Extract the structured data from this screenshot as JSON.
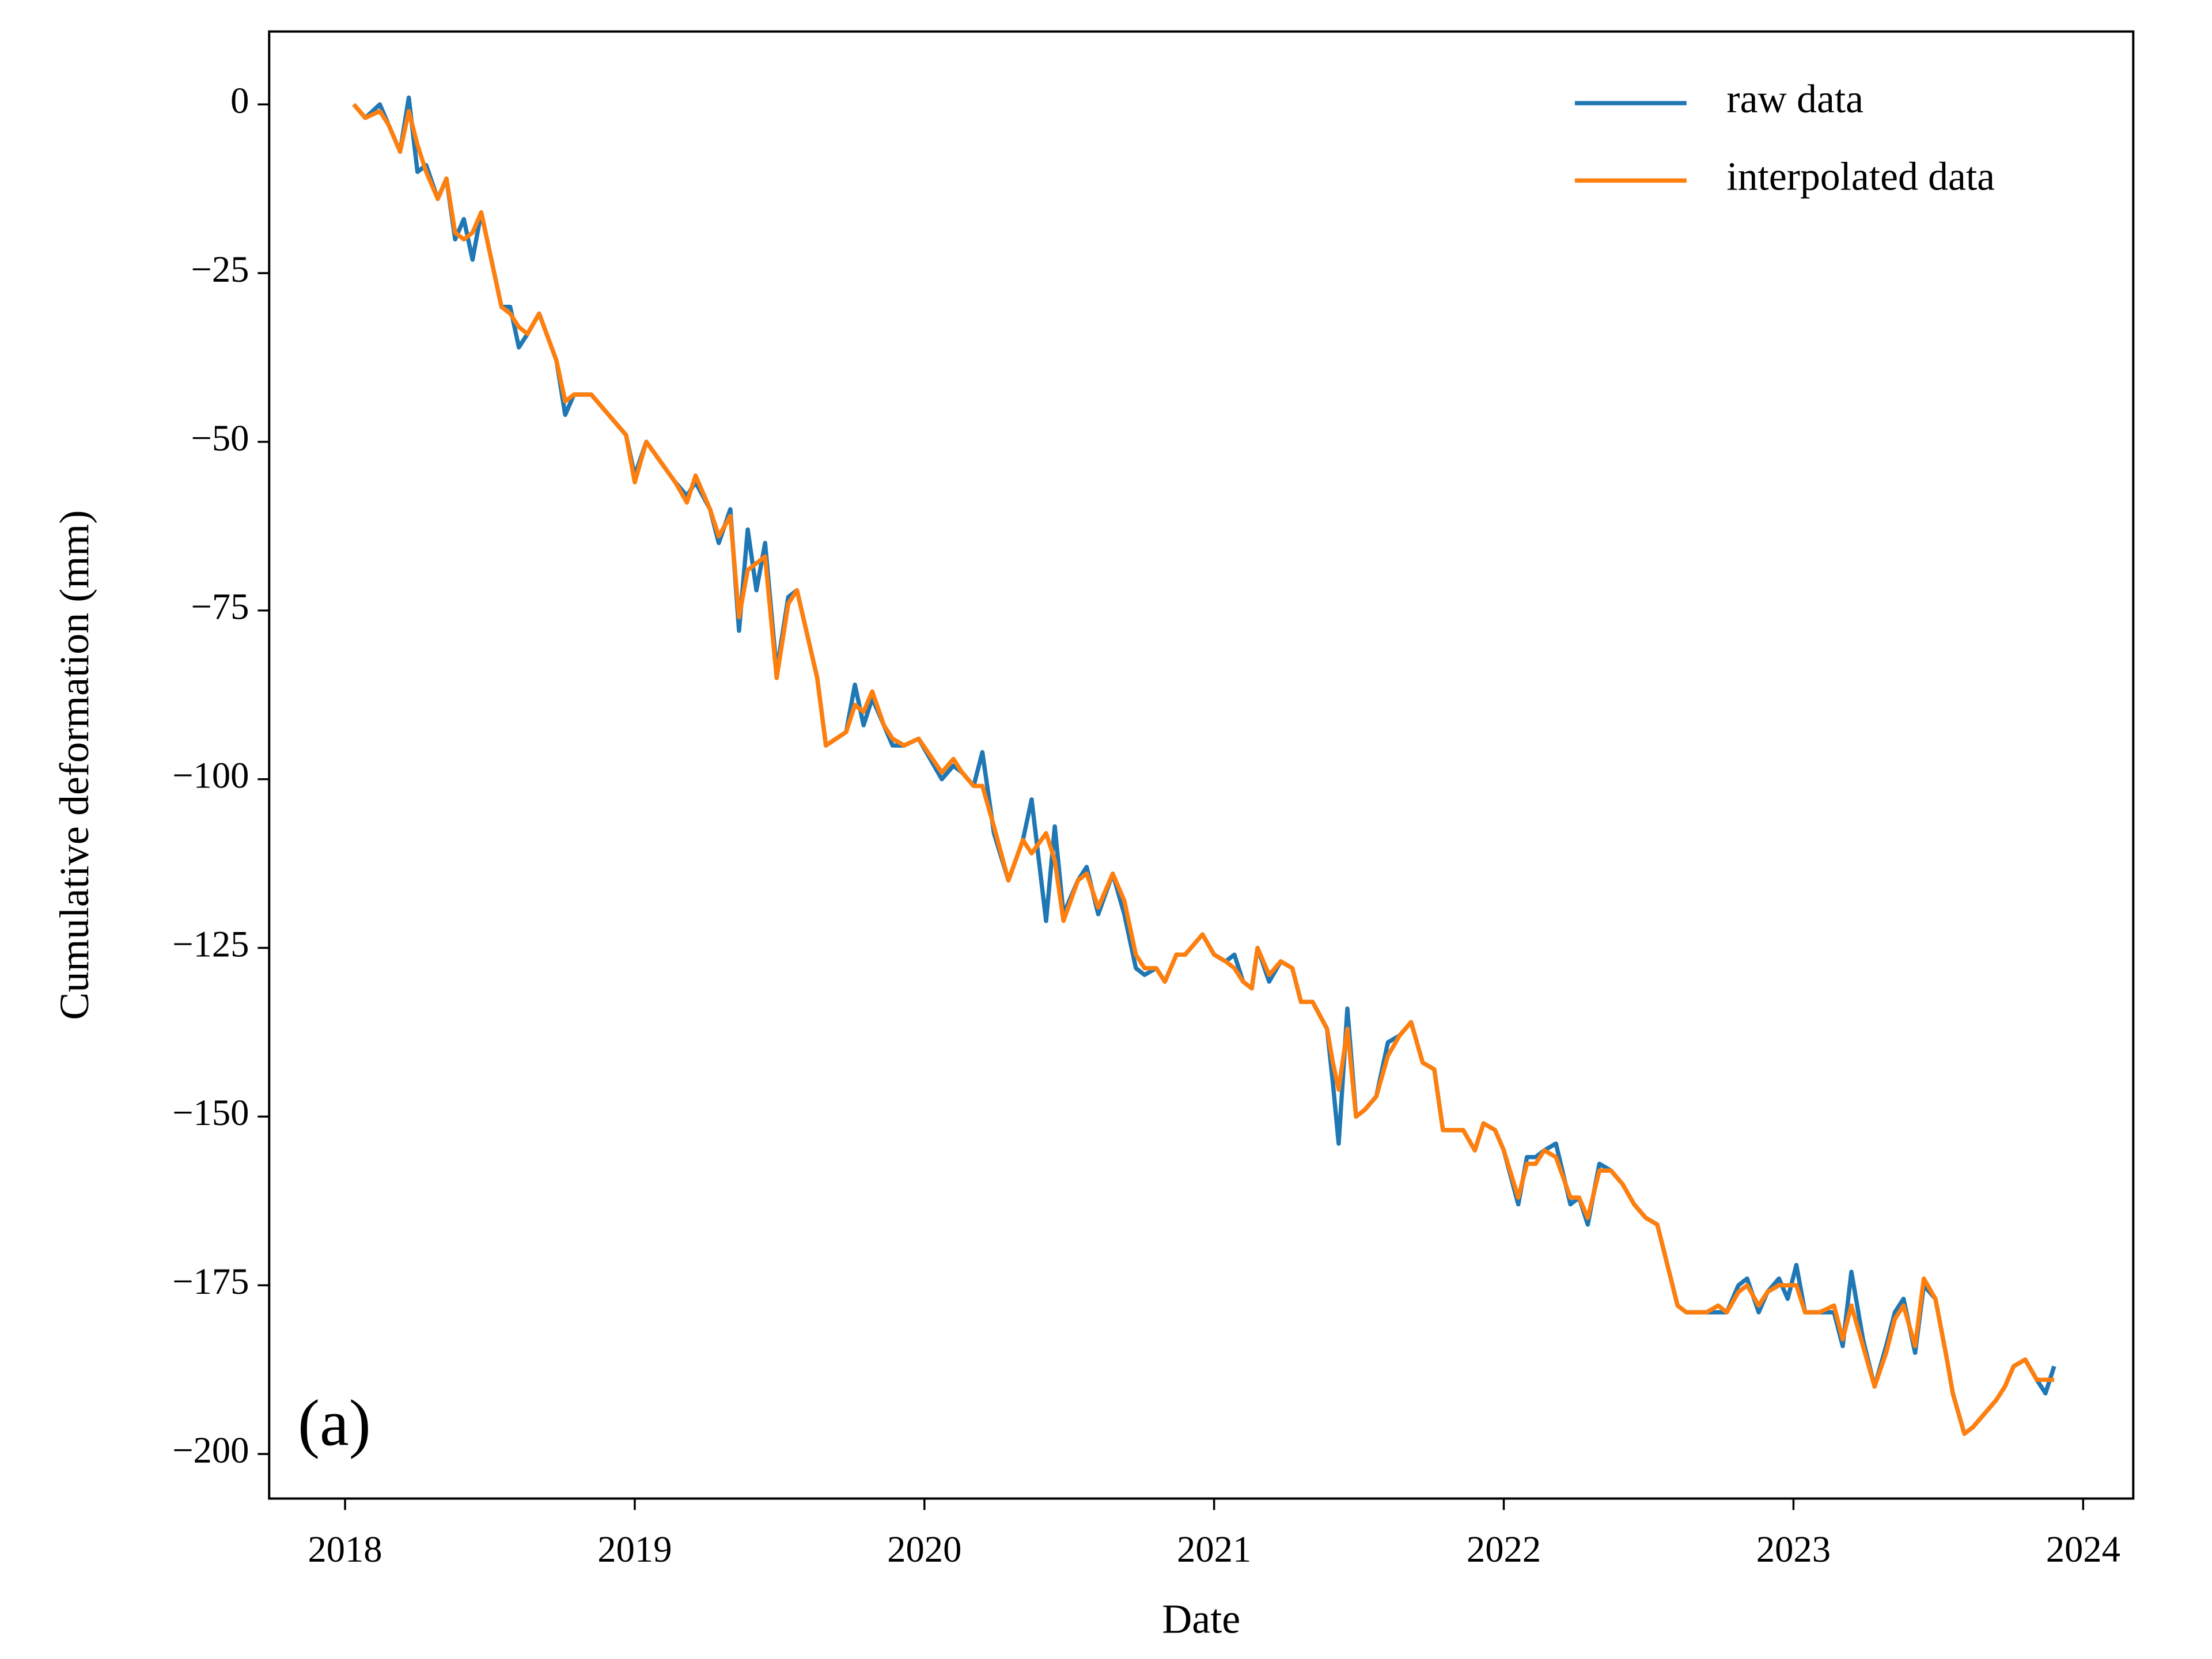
{
  "chart_data": {
    "type": "line",
    "xlabel": "Date",
    "ylabel": "Cumulative deformation (mm)",
    "annotation": "(a)",
    "x": [
      2018.03,
      2018.07,
      2018.12,
      2018.15,
      2018.19,
      2018.22,
      2018.25,
      2018.28,
      2018.32,
      2018.35,
      2018.38,
      2018.41,
      2018.44,
      2018.47,
      2018.51,
      2018.54,
      2018.57,
      2018.6,
      2018.63,
      2018.67,
      2018.73,
      2018.76,
      2018.79,
      2018.85,
      2018.89,
      2018.97,
      2019.0,
      2019.04,
      2019.14,
      2019.18,
      2019.21,
      2019.26,
      2019.29,
      2019.33,
      2019.36,
      2019.39,
      2019.42,
      2019.45,
      2019.49,
      2019.53,
      2019.56,
      2019.63,
      2019.66,
      2019.73,
      2019.76,
      2019.79,
      2019.82,
      2019.86,
      2019.89,
      2019.93,
      2019.98,
      2020.06,
      2020.1,
      2020.13,
      2020.17,
      2020.2,
      2020.24,
      2020.29,
      2020.34,
      2020.37,
      2020.42,
      2020.45,
      2020.48,
      2020.53,
      2020.56,
      2020.6,
      2020.65,
      2020.69,
      2020.73,
      2020.76,
      2020.8,
      2020.83,
      2020.87,
      2020.9,
      2020.96,
      2021.0,
      2021.04,
      2021.07,
      2021.1,
      2021.13,
      2021.15,
      2021.19,
      2021.23,
      2021.27,
      2021.3,
      2021.34,
      2021.39,
      2021.41,
      2021.43,
      2021.46,
      2021.49,
      2021.52,
      2021.56,
      2021.6,
      2021.64,
      2021.68,
      2021.72,
      2021.76,
      2021.79,
      2021.83,
      2021.86,
      2021.9,
      2021.93,
      2021.97,
      2022.0,
      2022.05,
      2022.08,
      2022.11,
      2022.14,
      2022.18,
      2022.23,
      2022.26,
      2022.29,
      2022.33,
      2022.37,
      2022.41,
      2022.45,
      2022.49,
      2022.53,
      2022.6,
      2022.63,
      2022.7,
      2022.74,
      2022.77,
      2022.81,
      2022.84,
      2022.88,
      2022.91,
      2022.95,
      2022.98,
      2023.01,
      2023.04,
      2023.09,
      2023.14,
      2023.17,
      2023.2,
      2023.24,
      2023.28,
      2023.32,
      2023.35,
      2023.38,
      2023.42,
      2023.45,
      2023.49,
      2023.53,
      2023.55,
      2023.59,
      2023.62,
      2023.7,
      2023.73,
      2023.76,
      2023.8,
      2023.84,
      2023.87,
      2023.9
    ],
    "series": [
      {
        "name": "raw data",
        "color": "#1f77b4",
        "values": [
          0,
          -2,
          0,
          -3,
          -7,
          1,
          -10,
          -9,
          -14,
          -11,
          -20,
          -17,
          -23,
          -16,
          -24,
          -30,
          -30,
          -36,
          -34,
          -31,
          -38,
          -46,
          -43,
          -43,
          -45,
          -49,
          -55,
          -50,
          -56,
          -58,
          -56,
          -60,
          -65,
          -60,
          -78,
          -63,
          -72,
          -65,
          -84,
          -73,
          -72,
          -85,
          -95,
          -93,
          -86,
          -92,
          -88,
          -92,
          -95,
          -95,
          -94,
          -100,
          -98,
          -99,
          -101,
          -96,
          -108,
          -115,
          -109,
          -103,
          -121,
          -107,
          -120,
          -115,
          -113,
          -120,
          -114,
          -120,
          -128,
          -129,
          -128,
          -130,
          -126,
          -126,
          -123,
          -126,
          -127,
          -126,
          -130,
          -131,
          -125,
          -130,
          -127,
          -128,
          -133,
          -133,
          -137,
          -145,
          -154,
          -134,
          -150,
          -149,
          -147,
          -139,
          -138,
          -136,
          -142,
          -143,
          -152,
          -152,
          -152,
          -155,
          -151,
          -152,
          -155,
          -163,
          -156,
          -156,
          -155,
          -154,
          -163,
          -162,
          -166,
          -157,
          -158,
          -160,
          -163,
          -165,
          -166,
          -178,
          -179,
          -179,
          -179,
          -179,
          -175,
          -174,
          -179,
          -176,
          -174,
          -177,
          -172,
          -179,
          -179,
          -179,
          -184,
          -173,
          -183,
          -190,
          -184,
          -179,
          -177,
          -185,
          -175,
          -177,
          -186,
          -191,
          -197,
          -196,
          -192,
          -190,
          -187,
          -186,
          -189,
          -191,
          -187
        ]
      },
      {
        "name": "interpolated data",
        "color": "#ff7f0e",
        "values": [
          0,
          -2,
          -1,
          -3,
          -7,
          -1,
          -6,
          -10,
          -14,
          -11,
          -19,
          -20,
          -19,
          -16,
          -24,
          -30,
          -31,
          -33,
          -34,
          -31,
          -38,
          -44,
          -43,
          -43,
          -45,
          -49,
          -56,
          -50,
          -56,
          -59,
          -55,
          -60,
          -64,
          -61,
          -76,
          -69,
          -68,
          -67,
          -85,
          -74,
          -72,
          -85,
          -95,
          -93,
          -89,
          -90,
          -87,
          -92,
          -94,
          -95,
          -94,
          -99,
          -97,
          -99,
          -101,
          -101,
          -107,
          -115,
          -109,
          -111,
          -108,
          -112,
          -121,
          -115,
          -114,
          -119,
          -114,
          -118,
          -126,
          -128,
          -128,
          -130,
          -126,
          -126,
          -123,
          -126,
          -127,
          -128,
          -130,
          -131,
          -125,
          -129,
          -127,
          -128,
          -133,
          -133,
          -137,
          -142,
          -146,
          -137,
          -150,
          -149,
          -147,
          -141,
          -138,
          -136,
          -142,
          -143,
          -152,
          -152,
          -152,
          -155,
          -151,
          -152,
          -155,
          -162,
          -157,
          -157,
          -155,
          -156,
          -162,
          -162,
          -165,
          -158,
          -158,
          -160,
          -163,
          -165,
          -166,
          -178,
          -179,
          -179,
          -178,
          -179,
          -176,
          -175,
          -178,
          -176,
          -175,
          -175,
          -175,
          -179,
          -179,
          -178,
          -183,
          -178,
          -184,
          -190,
          -185,
          -180,
          -178,
          -184,
          -174,
          -177,
          -186,
          -191,
          -197,
          -196,
          -192,
          -190,
          -187,
          -186,
          -189,
          -189,
          -189
        ]
      }
    ],
    "xlim": [
      2017.738,
      2024.173
    ],
    "xticks": [
      2018,
      2019,
      2020,
      2021,
      2022,
      2023,
      2024
    ],
    "ylim": [
      -206.6,
      10.8
    ],
    "yticks": [
      0,
      {
        "value": -25,
        "label": "−25"
      },
      {
        "value": -50,
        "label": "−50"
      },
      {
        "value": -75,
        "label": "−75"
      },
      {
        "value": -100,
        "label": "−100"
      },
      {
        "value": -125,
        "label": "−125"
      },
      {
        "value": -150,
        "label": "−150"
      },
      {
        "value": -175,
        "label": "−175"
      },
      {
        "value": -200,
        "label": "−200"
      }
    ],
    "legend": "upper right",
    "grid": false
  }
}
